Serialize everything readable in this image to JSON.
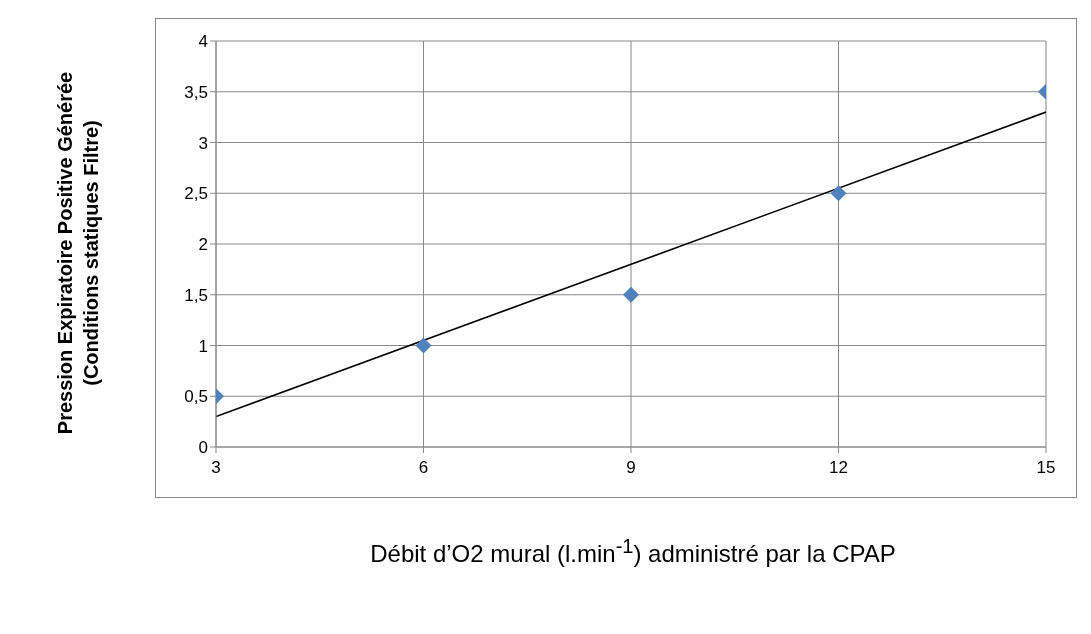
{
  "chart_data": {
    "type": "scatter",
    "xlabel": "Débit d’O2 mural (l.min$^{-1}$) administré par la CPAP",
    "ylabel": "Pression Expiratoire Positive Générée (Conditions statiques Filtre)",
    "x": [
      3,
      6,
      9,
      12,
      15
    ],
    "series": [
      {
        "color": "#4f81bd",
        "values": [
          0.5,
          1,
          1.5,
          2.5,
          3.5
        ],
        "marker": "diamond"
      },
      {
        "type": "line",
        "color": "#000000",
        "x": [
          3,
          15
        ],
        "values": [
          0.3,
          3.3
        ],
        "marker": "none",
        "line_style": "solid"
      }
    ],
    "xlim": [
      3,
      15
    ],
    "xticks": [
      3,
      6,
      9,
      12,
      15
    ],
    "ylim": [
      0,
      4
    ],
    "yticks": [
      0,
      {
        "value": 0.5,
        "label": "0,5"
      },
      1,
      {
        "value": 1.5,
        "label": "1,5"
      },
      2,
      {
        "value": 2.5,
        "label": "2,5"
      },
      3,
      {
        "value": 3.5,
        "label": "3,5"
      },
      4
    ],
    "grid": true
  }
}
